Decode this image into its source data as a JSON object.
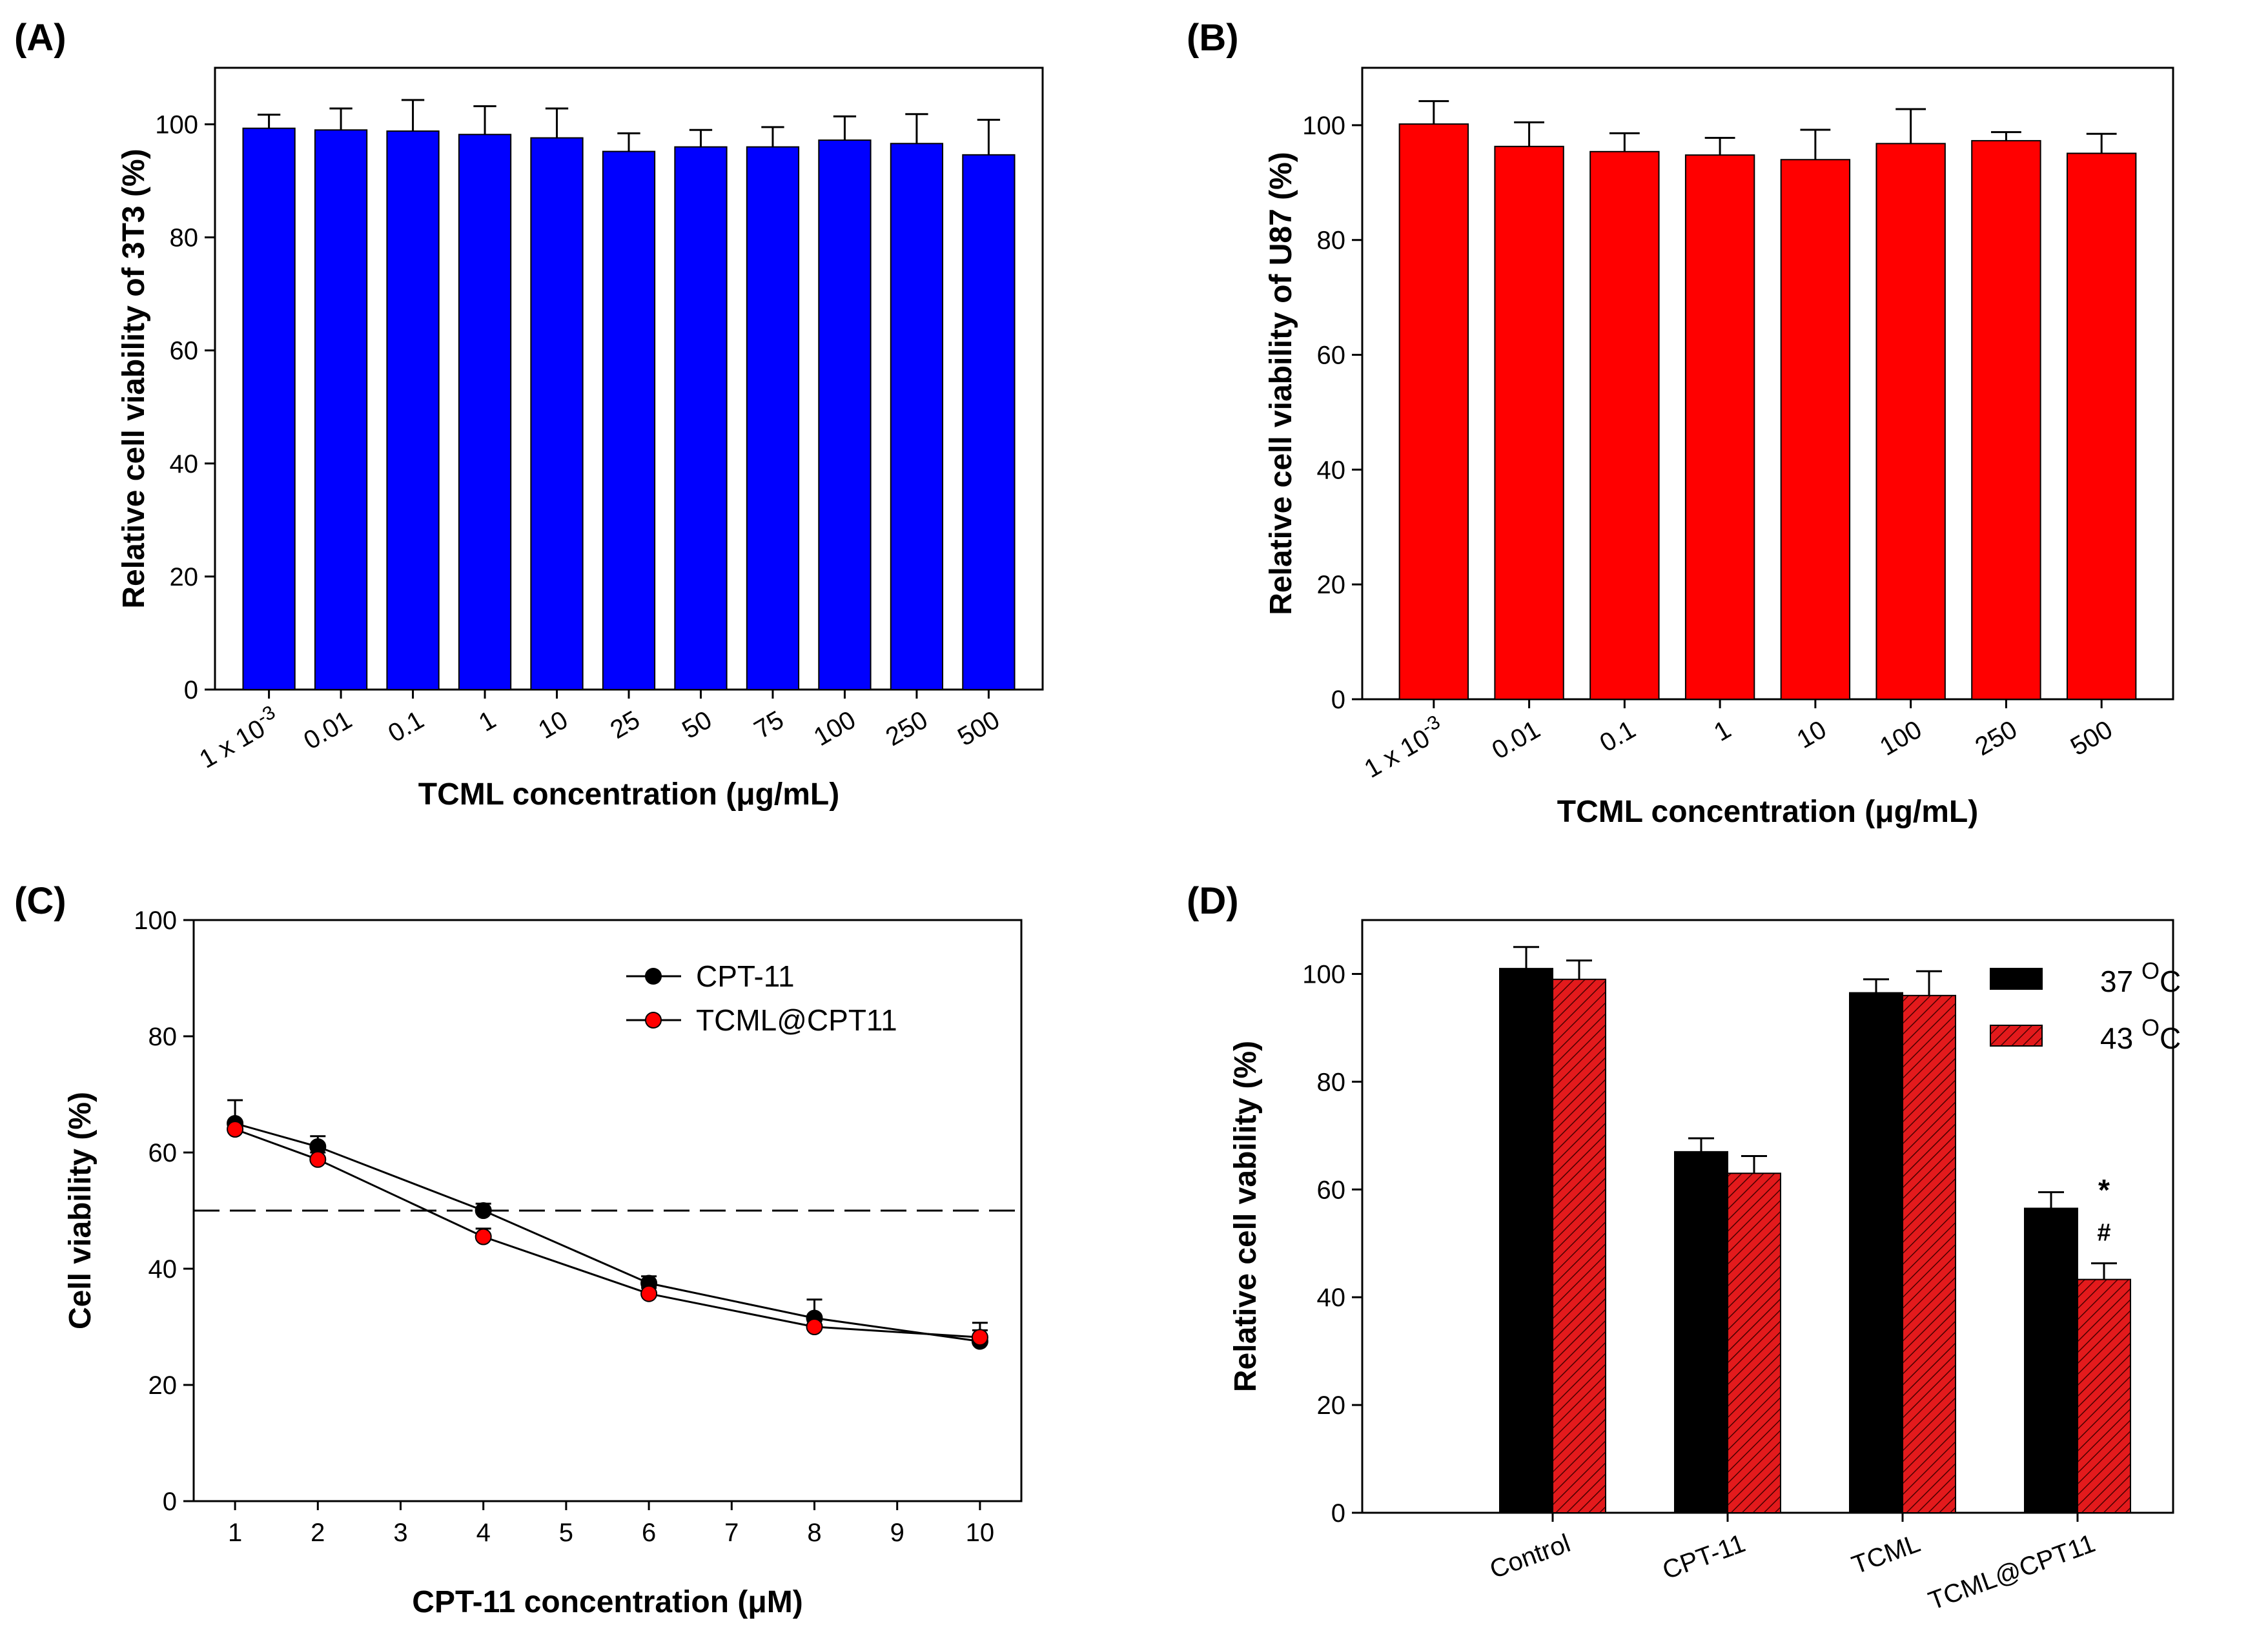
{
  "colors": {
    "blue_bar": "#0000ff",
    "red_bar": "#ff0000",
    "black_bar": "#000000",
    "hatched_red": "#e31a1c",
    "line": "#000000",
    "dash": "#000000"
  },
  "chart_data": [
    {
      "panel": "(A)",
      "type": "bar",
      "categories": [
        "1 x 10^-3",
        "0.01",
        "0.1",
        "1",
        "10",
        "25",
        "50",
        "75",
        "100",
        "250",
        "500"
      ],
      "category_labels": [
        {
          "base": "1 x 10",
          "sup": "-3"
        },
        {
          "base": "0.01",
          "sup": ""
        },
        {
          "base": "0.1",
          "sup": ""
        },
        {
          "base": "1",
          "sup": ""
        },
        {
          "base": "10",
          "sup": ""
        },
        {
          "base": "25",
          "sup": ""
        },
        {
          "base": "50",
          "sup": ""
        },
        {
          "base": "75",
          "sup": ""
        },
        {
          "base": "100",
          "sup": ""
        },
        {
          "base": "250",
          "sup": ""
        },
        {
          "base": "500",
          "sup": ""
        }
      ],
      "values": [
        99.3,
        99.0,
        98.8,
        98.2,
        97.6,
        95.2,
        96.0,
        96.0,
        97.2,
        96.6,
        94.6
      ],
      "errors": [
        2.4,
        3.8,
        5.5,
        5.0,
        5.2,
        3.2,
        3.0,
        3.5,
        4.2,
        5.2,
        6.2
      ],
      "xlabel": "TCML concentration (μg/mL)",
      "ylabel": "Relative cell viability of 3T3 (%)",
      "ylim": [
        0,
        110
      ],
      "yticks": [
        0,
        20,
        40,
        60,
        80,
        100
      ],
      "color": "blue"
    },
    {
      "panel": "(B)",
      "type": "bar",
      "categories": [
        "1 x 10^-3",
        "0.01",
        "0.1",
        "1",
        "10",
        "100",
        "250",
        "500"
      ],
      "category_labels": [
        {
          "base": "1 x 10",
          "sup": "-3"
        },
        {
          "base": "0.01",
          "sup": ""
        },
        {
          "base": "0.1",
          "sup": ""
        },
        {
          "base": "1",
          "sup": ""
        },
        {
          "base": "10",
          "sup": ""
        },
        {
          "base": "100",
          "sup": ""
        },
        {
          "base": "250",
          "sup": ""
        },
        {
          "base": "500",
          "sup": ""
        }
      ],
      "values": [
        100.2,
        96.3,
        95.4,
        94.8,
        94.0,
        96.8,
        97.3,
        95.1
      ],
      "errors": [
        4.0,
        4.2,
        3.2,
        3.0,
        5.2,
        6.0,
        1.5,
        3.4
      ],
      "xlabel": "TCML concentration (μg/mL)",
      "ylabel": "Relative cell viability of U87 (%)",
      "ylim": [
        0,
        110
      ],
      "yticks": [
        0,
        20,
        40,
        60,
        80,
        100
      ],
      "color": "red"
    },
    {
      "panel": "(C)",
      "type": "line",
      "x": [
        1,
        2,
        4,
        6,
        8,
        10
      ],
      "series": [
        {
          "name": "CPT-11",
          "values": [
            65.0,
            61.0,
            50.0,
            37.5,
            31.5,
            27.5
          ],
          "errors": [
            4.0,
            1.8,
            1.2,
            1.2,
            3.2,
            3.2
          ],
          "marker_color": "black"
        },
        {
          "name": "TCML@CPT11",
          "values": [
            64.0,
            58.8,
            45.5,
            35.7,
            30.0,
            28.2
          ],
          "errors": [
            1.2,
            1.2,
            1.4,
            1.0,
            1.0,
            1.2
          ],
          "marker_color": "red"
        }
      ],
      "reference_line": 50,
      "xlabel": "CPT-11 concentration (μM)",
      "ylabel": "Cell viability (%)",
      "xlim": [
        0.5,
        10.5
      ],
      "xticks": [
        1,
        2,
        3,
        4,
        5,
        6,
        7,
        8,
        9,
        10
      ],
      "ylim": [
        0,
        100
      ],
      "yticks": [
        0,
        20,
        40,
        60,
        80,
        100
      ]
    },
    {
      "panel": "(D)",
      "type": "bar",
      "categories": [
        "Control",
        "CPT-11",
        "TCML",
        "TCML@CPT11"
      ],
      "series": [
        {
          "name": "37 °C",
          "legend_base": "37 ",
          "legend_sup": "O",
          "legend_unit": "C",
          "values": [
            101.0,
            67.0,
            96.5,
            56.5
          ],
          "errors": [
            4.0,
            2.5,
            2.5,
            3.0
          ],
          "style": "solid-black"
        },
        {
          "name": "43 °C",
          "legend_base": "43 ",
          "legend_sup": "O",
          "legend_unit": "C",
          "values": [
            99.0,
            63.0,
            96.0,
            43.3
          ],
          "errors": [
            3.5,
            3.2,
            4.5,
            3.0
          ],
          "style": "hatched-red"
        }
      ],
      "annotations": [
        {
          "text": "*",
          "category": "TCML@CPT11"
        },
        {
          "text": "#",
          "category": "TCML@CPT11"
        }
      ],
      "xlabel": "",
      "ylabel": "Relative cell vability (%)",
      "ylim": [
        0,
        110
      ],
      "yticks": [
        0,
        20,
        40,
        60,
        80,
        100
      ]
    }
  ]
}
